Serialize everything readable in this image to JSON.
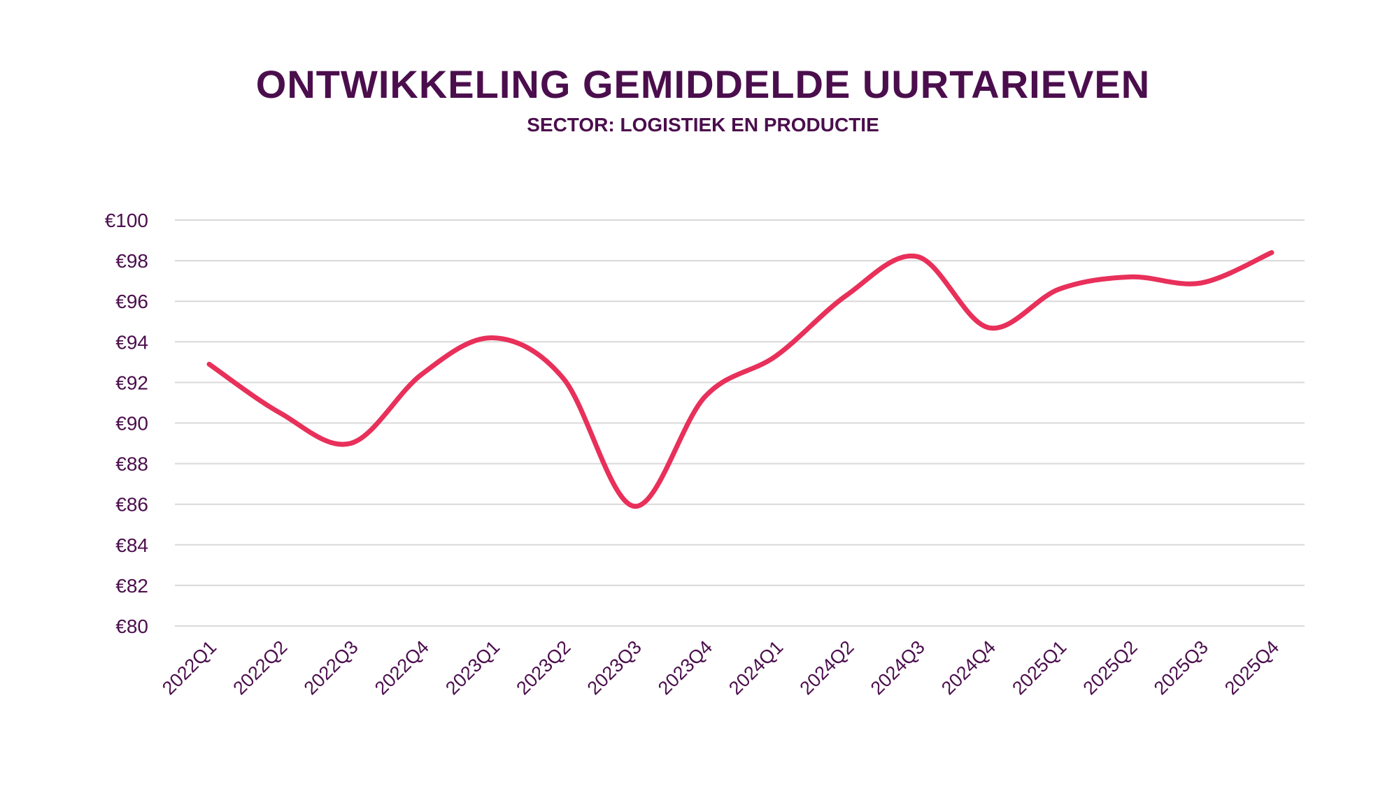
{
  "chart_data": {
    "type": "line",
    "title": "ONTWIKKELING GEMIDDELDE UURTARIEVEN",
    "subtitle": "SECTOR: LOGISTIEK EN PRODUCTIE",
    "xlabel": "",
    "ylabel": "",
    "categories": [
      "2022Q1",
      "2022Q2",
      "2022Q3",
      "2022Q4",
      "2023Q1",
      "2023Q2",
      "2023Q3",
      "2023Q4",
      "2024Q1",
      "2024Q2",
      "2024Q3",
      "2024Q4",
      "2025Q1",
      "2025Q2",
      "2025Q3",
      "2025Q4"
    ],
    "values": [
      92.9,
      90.5,
      89.0,
      92.4,
      94.2,
      92.2,
      85.9,
      91.3,
      93.3,
      96.3,
      98.2,
      94.7,
      96.6,
      97.2,
      96.9,
      98.4
    ],
    "ylim": [
      80,
      100
    ],
    "yticks": [
      "€80",
      "€82",
      "€84",
      "€86",
      "€88",
      "€90",
      "€92",
      "€94",
      "€96",
      "€98",
      "€100"
    ],
    "grid": true,
    "smooth": true,
    "colors": {
      "line": "#e8305a",
      "text": "#4b0e4d",
      "grid": "#d9d9d9"
    }
  }
}
